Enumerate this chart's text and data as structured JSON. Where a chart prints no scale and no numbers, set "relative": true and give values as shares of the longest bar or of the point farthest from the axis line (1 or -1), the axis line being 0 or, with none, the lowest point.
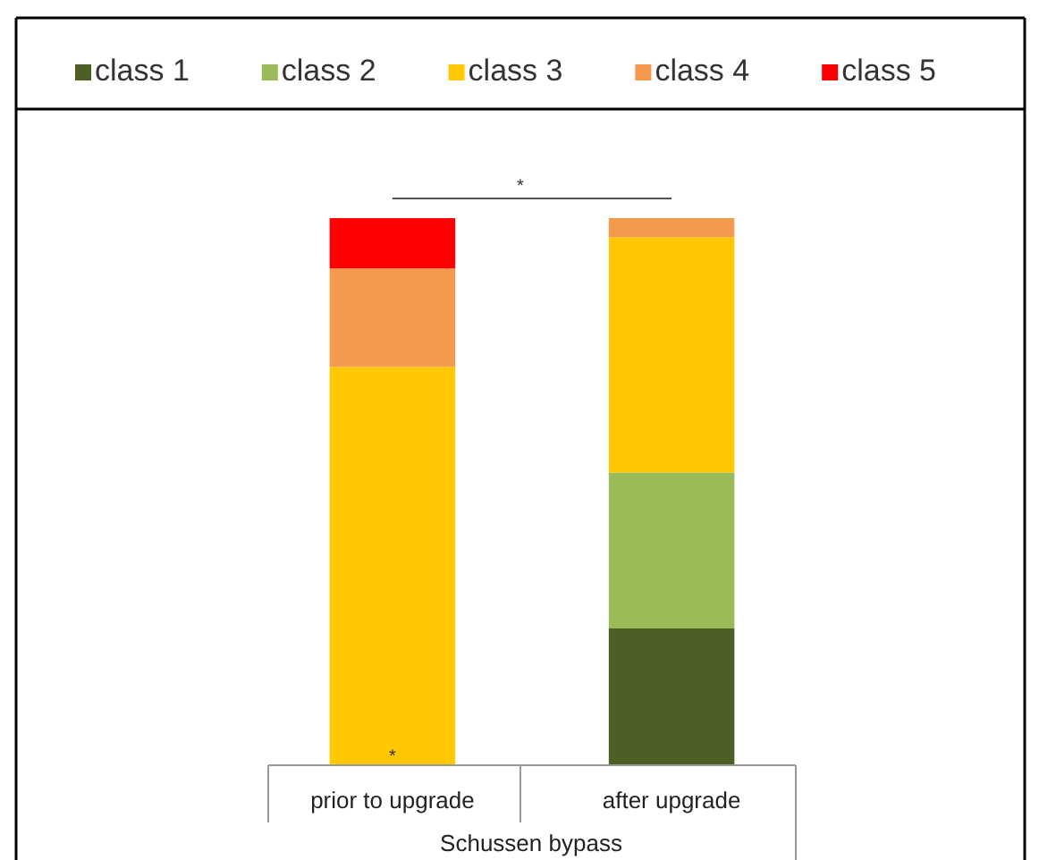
{
  "chart_data": {
    "type": "bar",
    "stacked": true,
    "relative": true,
    "legend": "top",
    "xlabel": "Schussen bypass",
    "categories": [
      "prior to upgrade",
      "after upgrade"
    ],
    "series": [
      {
        "name": "class 1",
        "color": "#4e5f26",
        "values": [
          0,
          0.25
        ]
      },
      {
        "name": "class 2",
        "color": "#9bbb59",
        "values": [
          0,
          0.285
        ]
      },
      {
        "name": "class 3",
        "color": "#ffc800",
        "values": [
          0.728,
          0.43
        ]
      },
      {
        "name": "class 4",
        "color": "#f59a4c",
        "values": [
          0.18,
          0.035
        ]
      },
      {
        "name": "class 5",
        "color": "#ff0000",
        "values": [
          0.092,
          0
        ]
      }
    ],
    "annotations": [
      "*",
      {
        "text": "*",
        "x": "prior to upgrade",
        "y": 0
      }
    ]
  }
}
